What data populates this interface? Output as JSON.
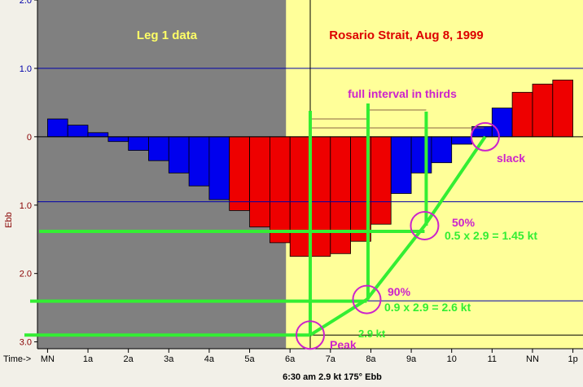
{
  "chart_data": {
    "type": "bar",
    "titles": {
      "left": "Leg 1 data",
      "right": "Rosario Strait, Aug 8, 1999"
    },
    "ylabel": "Ebb",
    "y_ticks": [
      {
        "v": -2.0,
        "label": "2.0"
      },
      {
        "v": -1.0,
        "label": "1.0"
      },
      {
        "v": 0.0,
        "label": "0"
      },
      {
        "v": 1.0,
        "label": "1.0"
      },
      {
        "v": 2.0,
        "label": "2.0"
      },
      {
        "v": 3.0,
        "label": "3.0"
      }
    ],
    "ylim": [
      -2.0,
      3.1
    ],
    "x_axis_prefix": "Time->",
    "x_ticks": [
      {
        "h": 0,
        "label": "MN"
      },
      {
        "h": 1,
        "label": "1a"
      },
      {
        "h": 2,
        "label": "2a"
      },
      {
        "h": 3,
        "label": "3a"
      },
      {
        "h": 4,
        "label": "4a"
      },
      {
        "h": 5,
        "label": "5a"
      },
      {
        "h": 6,
        "label": "6a"
      },
      {
        "h": 7,
        "label": "7a"
      },
      {
        "h": 8,
        "label": "8a"
      },
      {
        "h": 9,
        "label": "9a"
      },
      {
        "h": 10,
        "label": "10"
      },
      {
        "h": 11,
        "label": "11"
      },
      {
        "h": 12,
        "label": "NN"
      },
      {
        "h": 13,
        "label": "1p"
      }
    ],
    "xlim": [
      -0.25,
      13.25
    ],
    "data_shading_end_h": 5.9,
    "bar_width_h": 0.5,
    "bars": [
      {
        "t": 0.0,
        "v": -0.26,
        "c": "blue"
      },
      {
        "t": 0.5,
        "v": -0.17,
        "c": "blue"
      },
      {
        "t": 1.0,
        "v": -0.06,
        "c": "blue"
      },
      {
        "t": 1.5,
        "v": 0.07,
        "c": "blue"
      },
      {
        "t": 2.0,
        "v": 0.2,
        "c": "blue"
      },
      {
        "t": 2.5,
        "v": 0.35,
        "c": "blue"
      },
      {
        "t": 3.0,
        "v": 0.53,
        "c": "blue"
      },
      {
        "t": 3.5,
        "v": 0.72,
        "c": "blue"
      },
      {
        "t": 4.0,
        "v": 0.92,
        "c": "blue"
      },
      {
        "t": 4.5,
        "v": 1.08,
        "c": "red"
      },
      {
        "t": 5.0,
        "v": 1.32,
        "c": "red"
      },
      {
        "t": 5.5,
        "v": 1.55,
        "c": "red"
      },
      {
        "t": 6.0,
        "v": 1.75,
        "c": "red"
      },
      {
        "t": 6.5,
        "v": 1.75,
        "c": "red"
      },
      {
        "t": 7.0,
        "v": 1.71,
        "c": "red"
      },
      {
        "t": 7.5,
        "v": 1.53,
        "c": "red"
      },
      {
        "t": 8.0,
        "v": 1.28,
        "c": "red"
      },
      {
        "t": 8.5,
        "v": 0.83,
        "c": "blue"
      },
      {
        "t": 9.0,
        "v": 0.53,
        "c": "blue"
      },
      {
        "t": 9.5,
        "v": 0.38,
        "c": "blue"
      },
      {
        "t": 10.0,
        "v": 0.11,
        "c": "blue"
      },
      {
        "t": 10.5,
        "v": -0.15,
        "c": "blue"
      },
      {
        "t": 11.0,
        "v": -0.42,
        "c": "blue"
      },
      {
        "t": 11.5,
        "v": -0.65,
        "c": "red"
      },
      {
        "t": 12.0,
        "v": -0.77,
        "c": "red"
      },
      {
        "t": 12.5,
        "v": -0.83,
        "c": "red"
      }
    ],
    "colors": {
      "flood_bar": "#0000ee",
      "ebb_bar": "#ee0000",
      "data_region": "#808080",
      "plot_region": "#ffff99",
      "annotation": "#33ee33",
      "highlight": "#cc22cc",
      "grid_line": "#0000aa"
    },
    "annotations": {
      "interval_label": "full interval in thirds",
      "slack_label": "slack",
      "pct50_label": "50%",
      "pct50_calc": "0.5 x 2.9 = 1.45 kt",
      "pct90_label": "90%",
      "pct90_calc": "0.9 x 2.9 = 2.6 kt",
      "peak_value_label": "2.9 kt",
      "peak_label": "Peak",
      "peak_point": {
        "h": 6.5,
        "v": 2.9
      },
      "pct90_point": {
        "h": 7.9,
        "v": 2.38
      },
      "pct50_point": {
        "h": 9.33,
        "v": 1.3
      },
      "slack_point": {
        "h": 10.83,
        "v": 0.0
      }
    },
    "footer": "6:30 am 2.9 kt  175° Ebb"
  }
}
